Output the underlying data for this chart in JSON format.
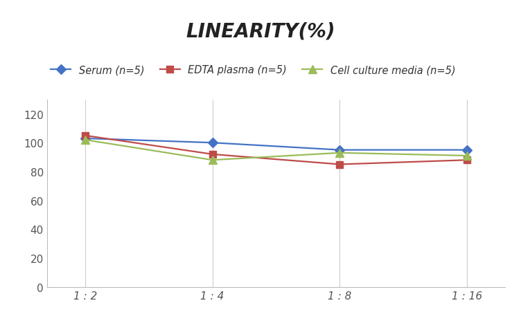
{
  "title": "LINEARITY(%)",
  "x_labels": [
    "1 : 2",
    "1 : 4",
    "1 : 8",
    "1 : 16"
  ],
  "x_positions": [
    0,
    1,
    2,
    3
  ],
  "series": [
    {
      "label": "Serum (n=5)",
      "values": [
        103,
        100,
        95,
        95
      ],
      "color": "#4472C4",
      "marker": "D",
      "marker_size": 7,
      "linewidth": 1.6
    },
    {
      "label": "EDTA plasma (n=5)",
      "values": [
        105,
        92,
        85,
        88
      ],
      "color": "#BE4B48",
      "marker": "s",
      "marker_size": 7,
      "linewidth": 1.6
    },
    {
      "label": "Cell culture media (n=5)",
      "values": [
        102,
        88,
        93,
        91
      ],
      "color": "#9BBB59",
      "marker": "^",
      "marker_size": 8,
      "linewidth": 1.6
    }
  ],
  "ylim": [
    0,
    130
  ],
  "yticks": [
    0,
    20,
    40,
    60,
    80,
    100,
    120
  ],
  "background_color": "#ffffff",
  "grid_color": "#cccccc",
  "title_fontsize": 20,
  "legend_fontsize": 10.5,
  "tick_fontsize": 11
}
